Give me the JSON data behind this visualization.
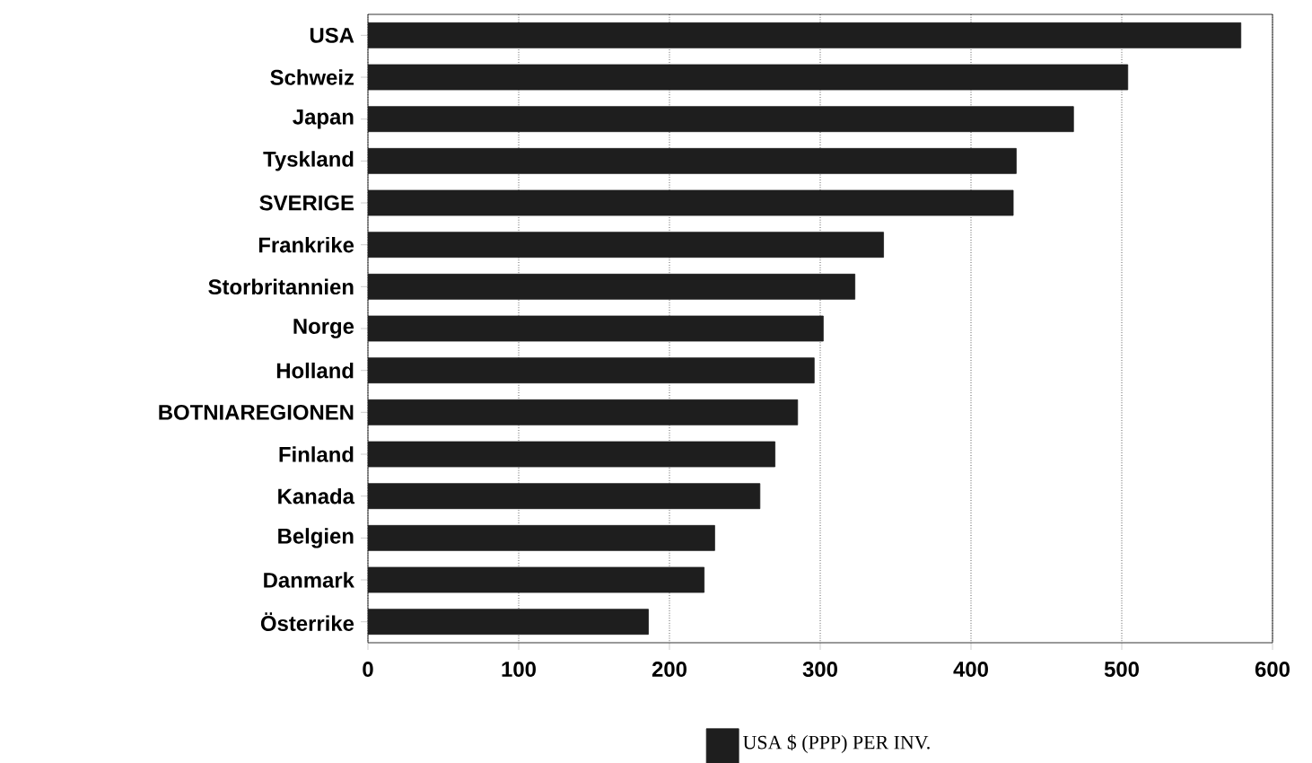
{
  "chart_data": {
    "type": "bar",
    "orientation": "horizontal",
    "categories": [
      "USA",
      "Schweiz",
      "Japan",
      "Tyskland",
      "SVERIGE",
      "Frankrike",
      "Storbritannien",
      "Norge",
      "Holland",
      "BOTNIAREGIONEN",
      "Finland",
      "Kanada",
      "Belgien",
      "Danmark",
      "Österrike"
    ],
    "series": [
      {
        "name": "USA $  (PPP) PER INV.",
        "color": "#1e1e1e",
        "values": [
          579,
          504,
          468,
          430,
          428,
          342,
          323,
          302,
          296,
          285,
          270,
          260,
          230,
          223,
          186
        ]
      }
    ],
    "xlim": [
      0,
      600
    ],
    "xticks": [
      0,
      100,
      200,
      300,
      400,
      500,
      600
    ],
    "grid": "x",
    "legend": "bottom"
  }
}
